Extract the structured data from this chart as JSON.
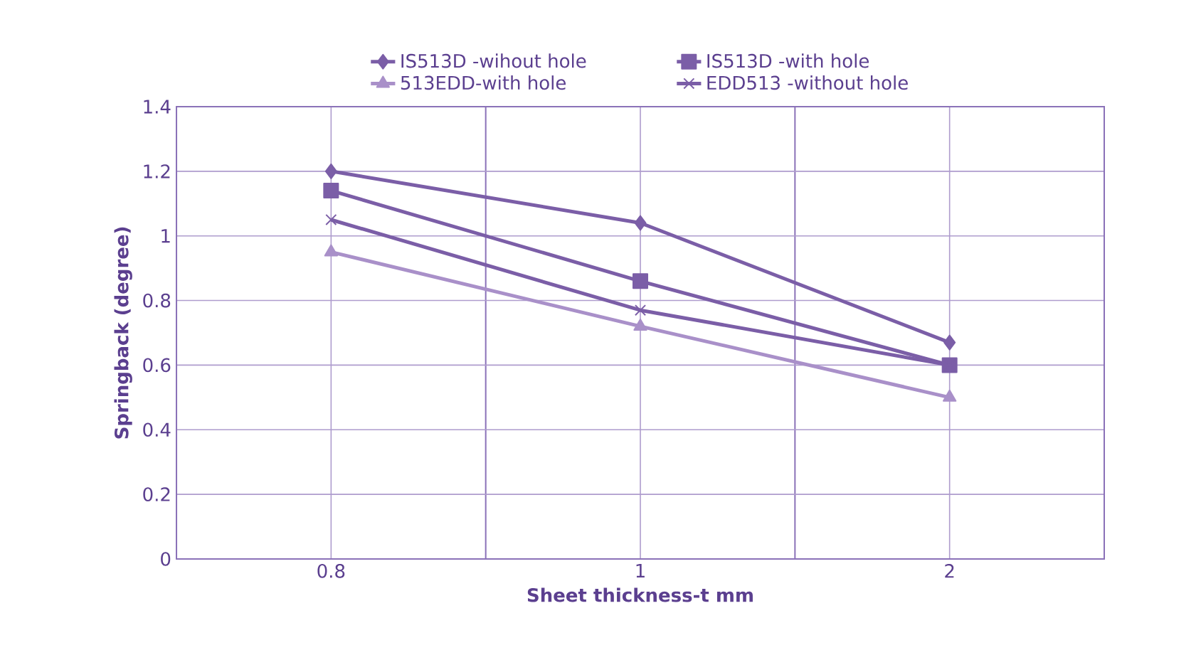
{
  "chart_data": {
    "type": "line",
    "xlabel": "Sheet thickness-t mm",
    "ylabel": "Springback (degree)",
    "categories": [
      "0.8",
      "1",
      "2"
    ],
    "series": [
      {
        "name": "IS513D -wihout hole",
        "color": "#7b5ea7",
        "marker": "diamond",
        "values": [
          1.2,
          1.04,
          0.67
        ]
      },
      {
        "name": "IS513D -with hole",
        "color": "#7b5ea7",
        "marker": "square",
        "values": [
          1.14,
          0.86,
          0.6
        ]
      },
      {
        "name": "513EDD-with hole",
        "color": "#a990c9",
        "marker": "triangle",
        "values": [
          0.95,
          0.72,
          0.5
        ]
      },
      {
        "name": "EDD513 -without hole",
        "color": "#7b5ea7",
        "marker": "cross",
        "values": [
          1.05,
          0.77,
          0.6
        ]
      }
    ],
    "ylim": [
      0,
      1.4
    ],
    "yticks": [
      0,
      0.2,
      0.4,
      0.6,
      0.8,
      1,
      1.2,
      1.4
    ],
    "grid": true,
    "legend": "top",
    "line_style": "solid"
  }
}
